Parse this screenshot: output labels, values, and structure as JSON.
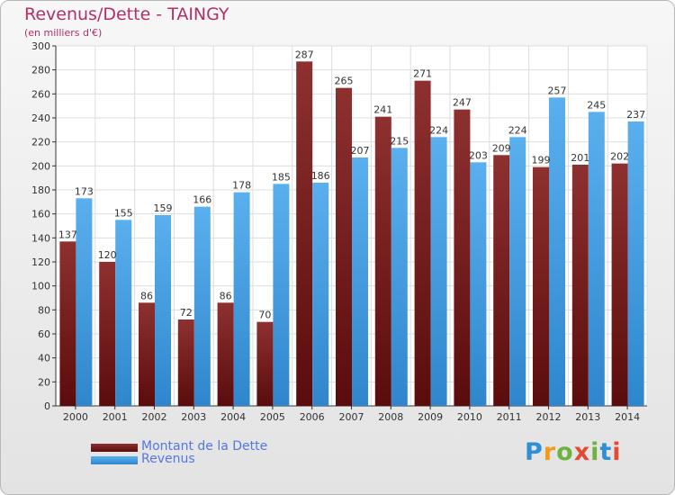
{
  "title": "Revenus/Dette - TAINGY",
  "subtitle": "(en milliers d'€)",
  "legend": {
    "dette_label": "Montant de la Dette",
    "revenus_label": "Revenus"
  },
  "logo": {
    "text": "Proxiti"
  },
  "colors": {
    "dette": "#7a2828",
    "revenus": "#4ea3e3",
    "title": "#b0306a",
    "legend_text": "#5577e0"
  },
  "chart_data": {
    "type": "bar",
    "categories": [
      "2000",
      "2001",
      "2002",
      "2003",
      "2004",
      "2005",
      "2006",
      "2007",
      "2008",
      "2009",
      "2010",
      "2011",
      "2012",
      "2013",
      "2014"
    ],
    "series": [
      {
        "name": "Montant de la Dette",
        "values": [
          137,
          120,
          86,
          72,
          86,
          70,
          287,
          265,
          241,
          271,
          247,
          209,
          199,
          201,
          202
        ]
      },
      {
        "name": "Revenus",
        "values": [
          173,
          155,
          159,
          166,
          178,
          185,
          186,
          207,
          215,
          224,
          203,
          224,
          257,
          245,
          237
        ]
      }
    ],
    "ylim": [
      0,
      300
    ],
    "yticks": [
      0,
      20,
      40,
      60,
      80,
      100,
      120,
      140,
      160,
      180,
      200,
      220,
      240,
      260,
      280,
      300
    ],
    "grid": true,
    "legend_position": "bottom-left"
  }
}
